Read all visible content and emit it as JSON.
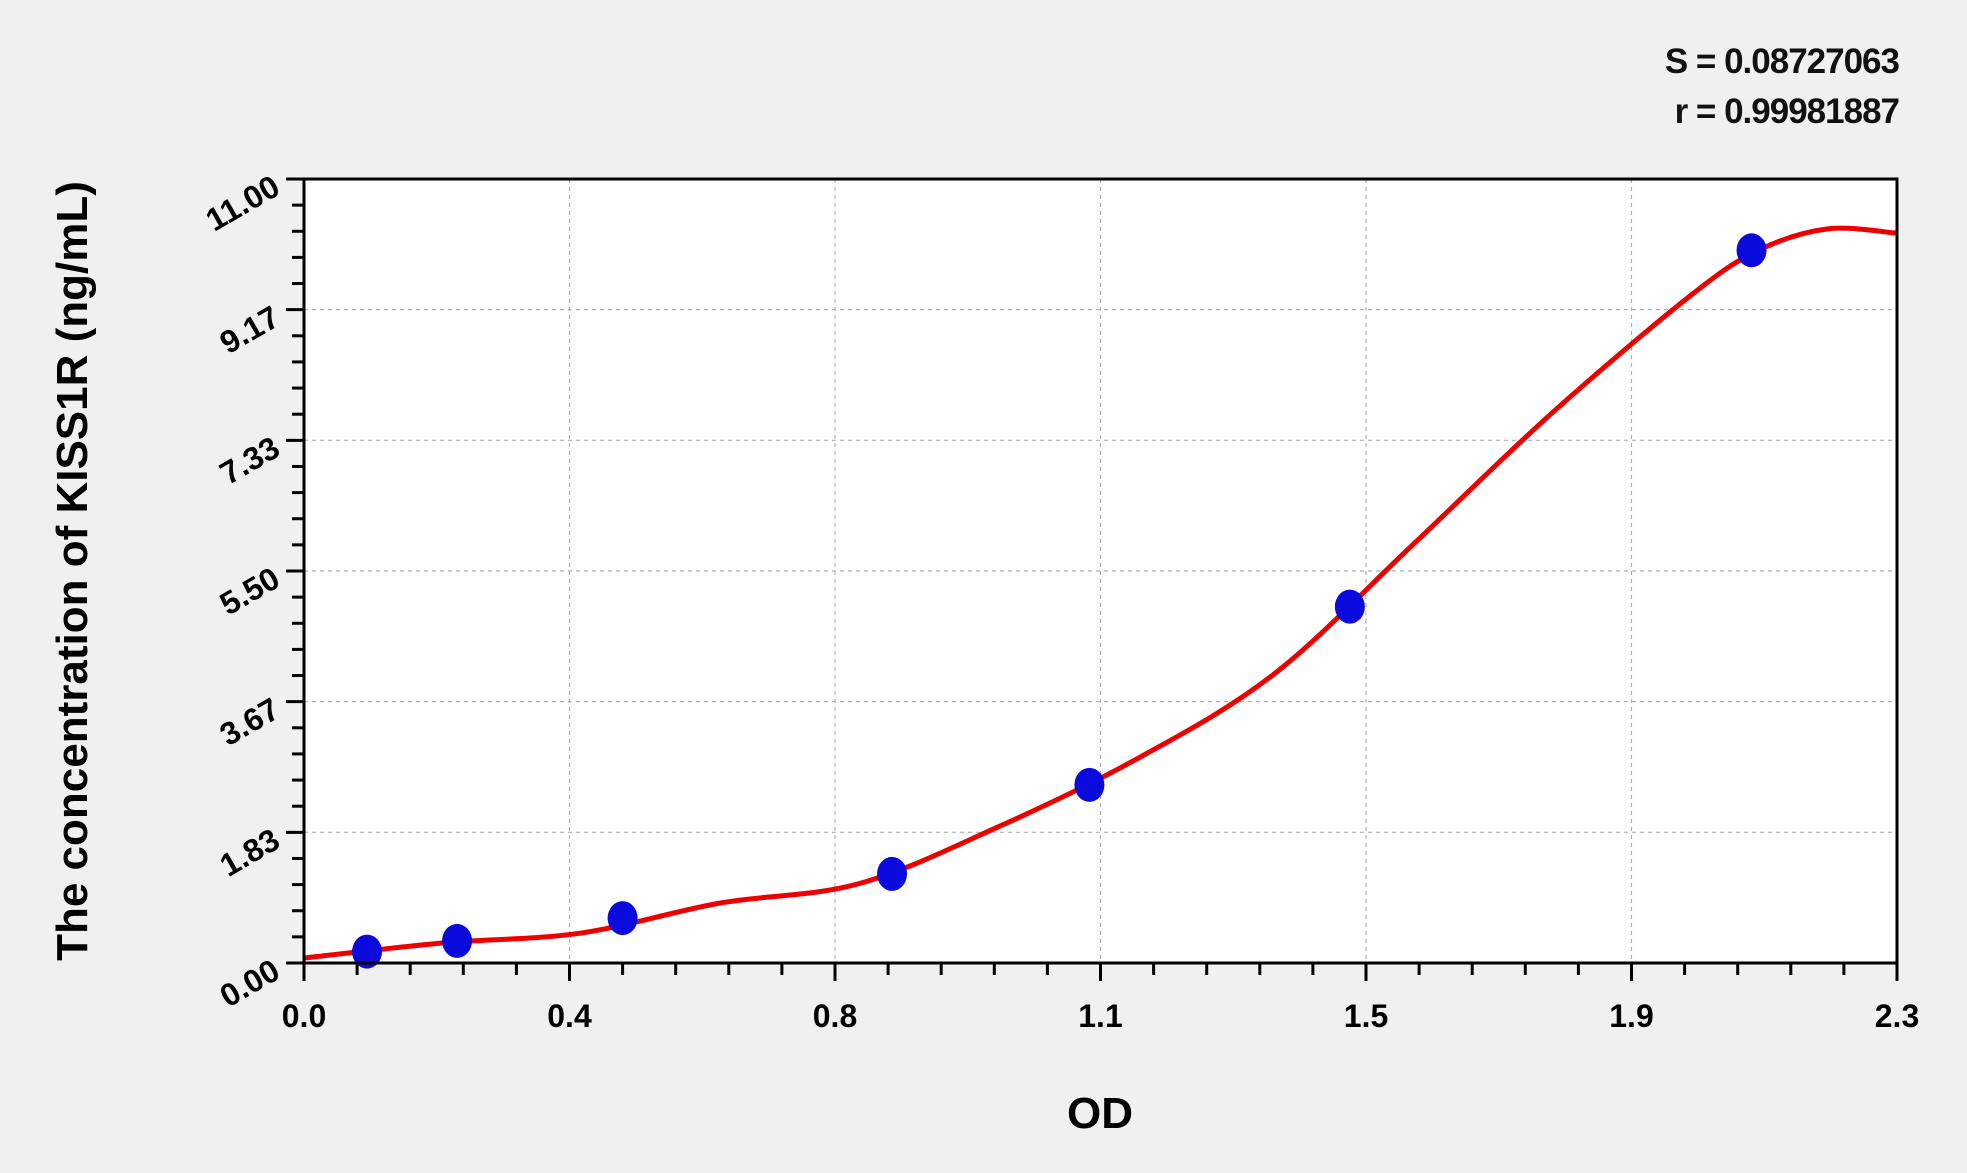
{
  "chart_data": {
    "type": "scatter",
    "xlabel": "OD",
    "ylabel": "The concentration of KISS1R (ng/mL)",
    "xlim": [
      0,
      2.3
    ],
    "ylim": [
      0,
      11
    ],
    "x_tick_labels": [
      "0.0",
      "0.4",
      "0.8",
      "1.1",
      "1.5",
      "1.9",
      "2.3"
    ],
    "y_tick_labels": [
      "0.00",
      "1.83",
      "3.67",
      "5.50",
      "7.33",
      "9.17",
      "11.00"
    ],
    "grid": true,
    "stats": {
      "s": "S = 0.08727063",
      "r": "r = 0.99981887"
    },
    "points": {
      "x": [
        0.091,
        0.221,
        0.46,
        0.849,
        1.134,
        1.51,
        2.09
      ],
      "y": [
        0.16,
        0.31,
        0.63,
        1.25,
        2.5,
        5.0,
        10.0
      ],
      "color": "#0a0adc"
    },
    "fit_curve": {
      "x": [
        0,
        0.2,
        0.4,
        0.6,
        0.8,
        1.0,
        1.2,
        1.4,
        1.6,
        1.8,
        2.0,
        2.1,
        2.2,
        2.3
      ],
      "y": [
        0.07,
        0.28,
        0.42,
        0.84,
        1.11,
        1.9,
        2.85,
        4.05,
        5.86,
        7.7,
        9.35,
        10.0,
        10.3,
        10.24
      ],
      "color": "#ee0000"
    }
  }
}
